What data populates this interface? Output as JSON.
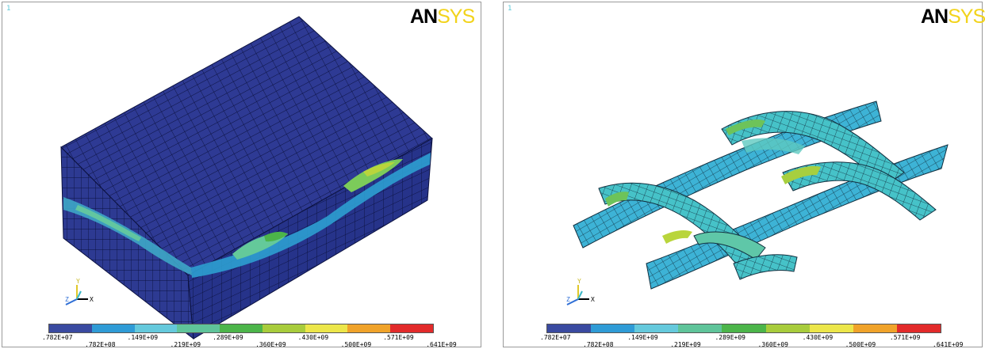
{
  "panels": [
    {
      "window_number": "1",
      "logo_prefix": "AN",
      "logo_suffix": "SYS"
    },
    {
      "window_number": "1",
      "logo_prefix": "AN",
      "logo_suffix": "SYS"
    }
  ],
  "triad": {
    "y_label": "Y",
    "z_label": "Z",
    "x_label": "X"
  },
  "legend": {
    "colors": [
      "#3a4aa0",
      "#2f9bd6",
      "#65c9dc",
      "#5fc49a",
      "#4cb54a",
      "#a8cc3c",
      "#ece64a",
      "#f0a32a",
      "#e22a2a"
    ],
    "labels_bottom": [
      ".782E+07",
      ".149E+09",
      ".289E+09",
      ".430E+09",
      ".571E+09"
    ],
    "labels_top": [
      ".782E+08",
      ".219E+09",
      ".360E+09",
      ".500E+09",
      ".641E+09"
    ]
  }
}
